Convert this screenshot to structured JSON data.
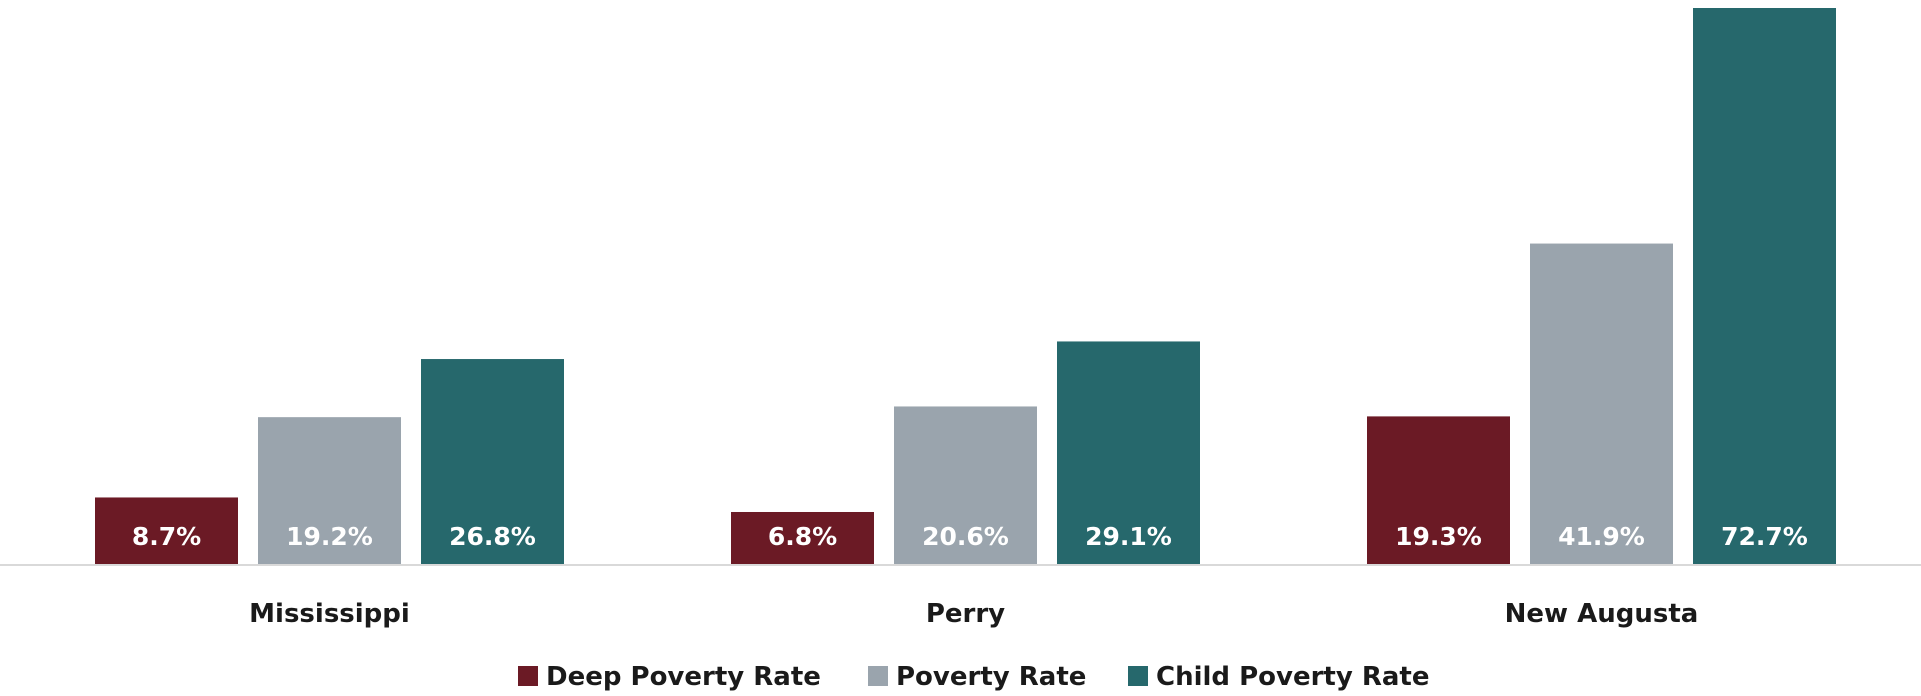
{
  "chart_data": {
    "type": "bar",
    "categories": [
      "Mississippi",
      "Perry",
      "New Augusta"
    ],
    "series": [
      {
        "name": "Deep Poverty Rate",
        "color": "#6b1a25",
        "values": [
          8.7,
          6.8,
          19.3
        ],
        "labels": [
          "8.7%",
          "6.8%",
          "19.3%"
        ]
      },
      {
        "name": "Poverty Rate",
        "color": "#9aa4ad",
        "values": [
          19.2,
          20.6,
          41.9
        ],
        "labels": [
          "19.2%",
          "20.6%",
          "41.9%"
        ]
      },
      {
        "name": "Child Poverty Rate",
        "color": "#26686c",
        "values": [
          26.8,
          29.1,
          72.7
        ],
        "labels": [
          "26.8%",
          "29.1%",
          "72.7%"
        ]
      }
    ],
    "ylim": [
      0,
      72.7
    ],
    "grid": false,
    "legend": "bottom-center",
    "title": "",
    "xlabel": "",
    "ylabel": ""
  },
  "axis_color": "#d9d9d9"
}
